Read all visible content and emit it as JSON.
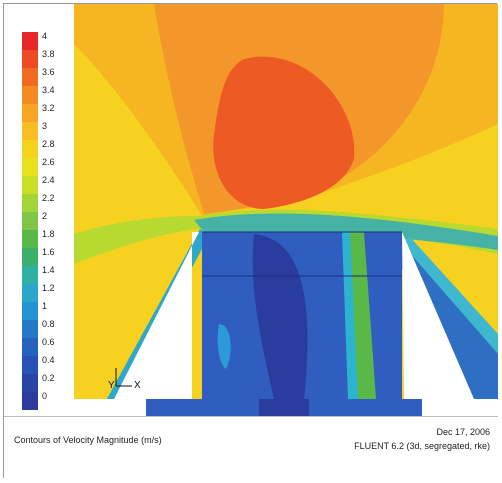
{
  "colorbar": {
    "ticks": [
      "4",
      "3.8",
      "3.6",
      "3.4",
      "3.2",
      "3",
      "2.8",
      "2.6",
      "2.4",
      "2.2",
      "2",
      "1.8",
      "1.6",
      "1.4",
      "1.2",
      "1",
      "0.8",
      "0.6",
      "0.4",
      "0.2",
      "0"
    ],
    "colors": [
      "#e8272b",
      "#ee4a24",
      "#f06a22",
      "#f38a22",
      "#f7a423",
      "#f8bd22",
      "#f4d21d",
      "#e6e11b",
      "#c9df25",
      "#a4d437",
      "#7fc646",
      "#56b94a",
      "#3ab06d",
      "#2fb0a0",
      "#2aa7c9",
      "#2594d4",
      "#2378c8",
      "#2462be",
      "#2552b4",
      "#2744a7",
      "#2a3c9e"
    ]
  },
  "axes": {
    "y": "Y",
    "x": "X"
  },
  "footer": {
    "title": "Contours of Velocity Magnitude (m/s)",
    "date": "Dec 17, 2006",
    "solver": "FLUENT 6.2 (3d, segregated, rke)"
  },
  "colors": {
    "red": "#e8322a",
    "orange": "#f18a23",
    "yellow": "#f7d51e",
    "green": "#6fbf44",
    "cyan": "#2bb3d0",
    "blue": "#2f5ec0",
    "navy": "#2a3c9e"
  }
}
